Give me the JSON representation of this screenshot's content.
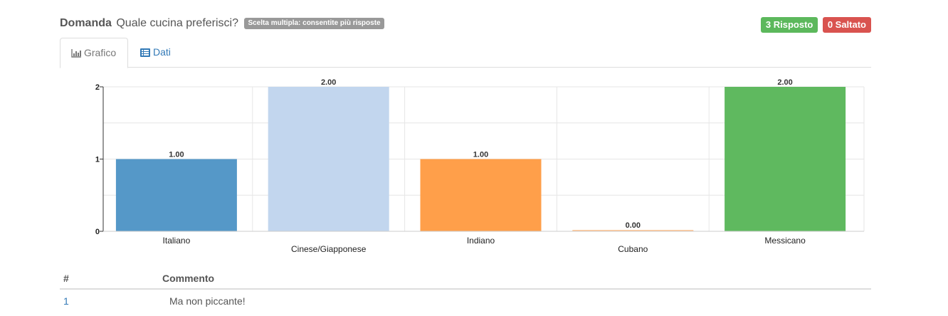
{
  "question": {
    "label": "Domanda",
    "text": "Quale cucina preferisci?",
    "type_badge": "Scelta multipla: consentite più risposte"
  },
  "status": {
    "answered": "3 Risposto",
    "skipped": "0 Saltato",
    "answered_color": "#5cb85c",
    "skipped_color": "#d9534f"
  },
  "tabs": [
    {
      "label": "Grafico",
      "icon": "bar-chart-icon",
      "active": true
    },
    {
      "label": "Dati",
      "icon": "list-icon",
      "active": false
    }
  ],
  "chart_data": {
    "type": "bar",
    "categories": [
      "Italiano",
      "Cinese/Giapponese",
      "Indiano",
      "Cubano",
      "Messicano"
    ],
    "values": [
      1,
      2,
      1,
      0,
      2
    ],
    "value_labels": [
      "1.00",
      "2.00",
      "1.00",
      "0.00",
      "2.00"
    ],
    "colors": [
      "#5598c8",
      "#c2d6ee",
      "#ff9f4a",
      "#ffc99a",
      "#5fb95f"
    ],
    "ylim": [
      0,
      2
    ],
    "yticks": [
      0,
      1,
      2
    ],
    "grid": true,
    "title": "",
    "xlabel": "",
    "ylabel": ""
  },
  "table": {
    "headers": [
      "#",
      "Commento"
    ],
    "rows": [
      {
        "num": "1",
        "comment": "Ma non piccante!"
      }
    ]
  }
}
